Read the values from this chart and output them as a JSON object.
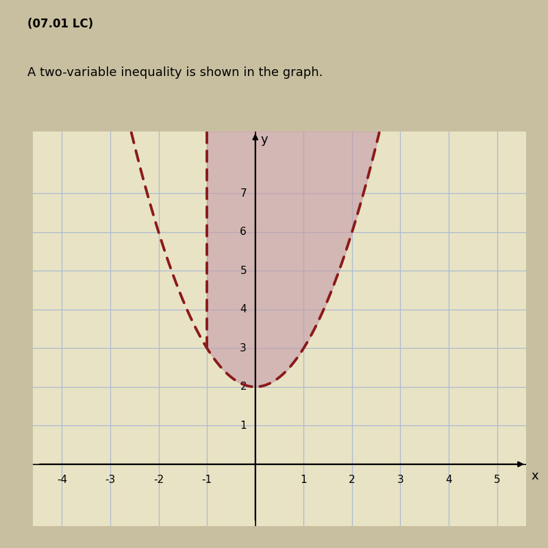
{
  "title_line1": "(07.01 LC)",
  "title_line2": "A two-variable inequality is shown in the graph.",
  "graph_bg_color": "#e8e3c4",
  "outer_bg_color": "#d4cba4",
  "shade_color": "#c49aaa",
  "shade_alpha": 0.6,
  "parabola_a": 1,
  "parabola_b": 0,
  "parabola_c": 2,
  "xlim": [
    -4.6,
    5.6
  ],
  "ylim": [
    -1.6,
    8.6
  ],
  "xticks": [
    -4,
    -3,
    -2,
    -1,
    0,
    1,
    2,
    3,
    4,
    5
  ],
  "yticks": [
    1,
    2,
    3,
    4,
    5,
    6,
    7
  ],
  "grid_color": "#aabbd0",
  "grid_linewidth": 0.9,
  "dash_color": "#8b1a1a",
  "dash_linewidth": 2.8,
  "left_boundary_x": -1,
  "shade_top": 8.6,
  "figure_bg": "#c8bfa0",
  "title1_fontsize": 12,
  "title2_fontsize": 13,
  "tick_fontsize": 11,
  "axis_label_fontsize": 13
}
